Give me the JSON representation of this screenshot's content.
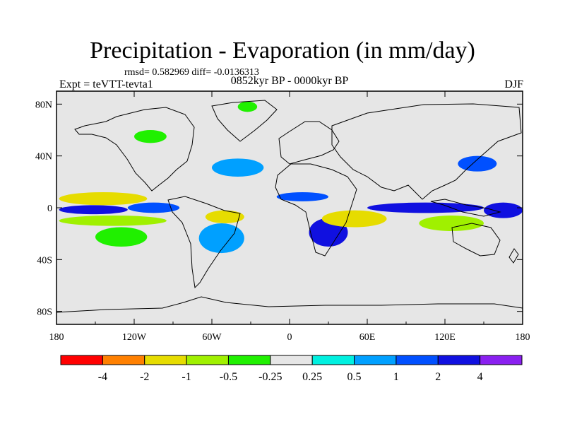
{
  "title": "Precipitation - Evaporation (in mm/day)",
  "stats": "rmsd= 0.582969  diff= -0.0136313",
  "subtitle": "0852kyr BP - 0000kyr BP",
  "experiment": "Expt = teVTT-tevta1",
  "season": "DJF",
  "chart_data": {
    "type": "heatmap",
    "projection": "cylindrical-equidistant",
    "x_axis": {
      "range": [
        -180,
        180
      ],
      "ticks": [
        -180,
        -120,
        -60,
        0,
        60,
        120,
        180
      ],
      "tick_labels": [
        "180",
        "120W",
        "60W",
        "0",
        "60E",
        "120E",
        "180"
      ]
    },
    "y_axis": {
      "range": [
        -90,
        90
      ],
      "ticks": [
        80,
        40,
        0,
        -40,
        -80
      ],
      "tick_labels": [
        "80N",
        "40N",
        "0",
        "40S",
        "80S"
      ]
    },
    "colorbar": {
      "levels": [
        "-4",
        "-2",
        "-1",
        "-0.5",
        "-0.25",
        "0.25",
        "0.5",
        "1",
        "2",
        "4"
      ],
      "colors": [
        "#ff0000",
        "#ff8000",
        "#e6dc00",
        "#a0f000",
        "#20f000",
        "#e6e6e6",
        "#00f0e0",
        "#00a0ff",
        "#0050ff",
        "#1010e0",
        "#8a20f0"
      ]
    },
    "background_color": "#e6e6e6",
    "regions": [
      {
        "lon": [
          -178,
          -110
        ],
        "lat": [
          2,
          12
        ],
        "value": -1.5
      },
      {
        "lon": [
          -178,
          -125
        ],
        "lat": [
          -5,
          2
        ],
        "value": 3
      },
      {
        "lon": [
          -125,
          -85
        ],
        "lat": [
          -4,
          4
        ],
        "value": 1.5
      },
      {
        "lon": [
          -178,
          -95
        ],
        "lat": [
          -14,
          -6
        ],
        "value": -1
      },
      {
        "lon": [
          -150,
          -110
        ],
        "lat": [
          -30,
          -15
        ],
        "value": -0.5
      },
      {
        "lon": [
          -65,
          -35
        ],
        "lat": [
          -12,
          -2
        ],
        "value": -1.5
      },
      {
        "lon": [
          -70,
          -35
        ],
        "lat": [
          -35,
          -12
        ],
        "value": 0.7
      },
      {
        "lon": [
          -60,
          -20
        ],
        "lat": [
          24,
          38
        ],
        "value": 0.7
      },
      {
        "lon": [
          -10,
          30
        ],
        "lat": [
          5,
          12
        ],
        "value": 1.5
      },
      {
        "lon": [
          15,
          45
        ],
        "lat": [
          -30,
          -8
        ],
        "value": 2.5
      },
      {
        "lon": [
          25,
          75
        ],
        "lat": [
          -15,
          -2
        ],
        "value": -1.5
      },
      {
        "lon": [
          60,
          150
        ],
        "lat": [
          -4,
          4
        ],
        "value": 2.5
      },
      {
        "lon": [
          100,
          150
        ],
        "lat": [
          -18,
          -6
        ],
        "value": -1
      },
      {
        "lon": [
          150,
          180
        ],
        "lat": [
          -8,
          4
        ],
        "value": 2.5
      },
      {
        "lon": [
          -120,
          -95
        ],
        "lat": [
          50,
          60
        ],
        "value": -0.3
      },
      {
        "lon": [
          -40,
          -25
        ],
        "lat": [
          74,
          82
        ],
        "value": -0.3
      },
      {
        "lon": [
          130,
          160
        ],
        "lat": [
          28,
          40
        ],
        "value": 1.5
      }
    ]
  }
}
